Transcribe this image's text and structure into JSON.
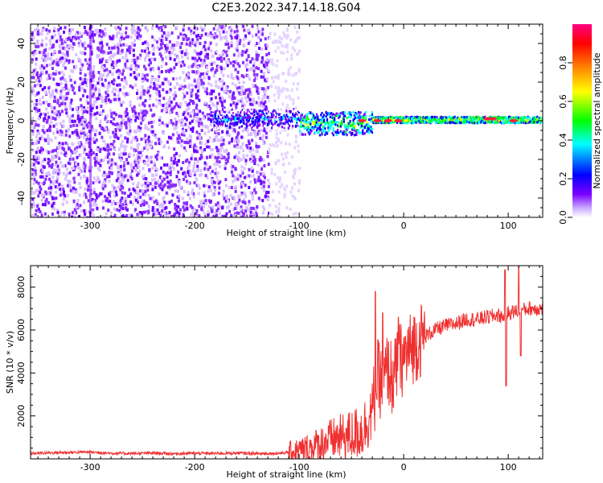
{
  "figure": {
    "title": "C2E3.2022.347.14.18.G04"
  },
  "chart_data": [
    {
      "type": "heatmap",
      "title": "C2E3.2022.347.14.18.G04",
      "xlabel": "Height of straight line (km)",
      "ylabel": "Frequency (Hz)",
      "xlim": [
        -357,
        133
      ],
      "ylim": [
        -50,
        50
      ],
      "x_ticks": [
        "-300",
        "-200",
        "-100",
        "0",
        "100"
      ],
      "x_tick_values": [
        -300,
        -200,
        -100,
        0,
        100
      ],
      "y_ticks": [
        "-40",
        "-20",
        "0",
        "20",
        "40"
      ],
      "y_tick_values": [
        -40,
        -20,
        0,
        20,
        40
      ],
      "colorbar": {
        "label": "Normalized spectral amplitude",
        "ticks": [
          "0.0",
          "0.2",
          "0.4",
          "0.6",
          "0.8"
        ],
        "tick_values": [
          0,
          0.2,
          0.4,
          0.6,
          0.8
        ],
        "range": [
          0,
          1
        ],
        "colormap": [
          "#ffffff",
          "#7b00ff",
          "#0000ff",
          "#00ffff",
          "#00ff00",
          "#ffff00",
          "#ff8000",
          "#ff0000",
          "#ff0080"
        ]
      },
      "regions": [
        {
          "description": "broadband noise",
          "x": [
            -357,
            -130
          ],
          "y": [
            -50,
            50
          ],
          "amplitude": 0.12
        },
        {
          "description": "sparse noise",
          "x": [
            -130,
            -100
          ],
          "y": [
            -50,
            50
          ],
          "amplitude": 0.05
        },
        {
          "description": "carrier onset",
          "x": [
            -180,
            -100
          ],
          "y": [
            -3,
            5
          ],
          "amplitude": 0.3
        },
        {
          "description": "carrier",
          "x": [
            -100,
            -30
          ],
          "y": [
            -6,
            4
          ],
          "amplitude": 0.5
        },
        {
          "description": "carrier",
          "x": [
            -30,
            133
          ],
          "y": [
            -1,
            2
          ],
          "amplitude": 0.6
        }
      ]
    },
    {
      "type": "line",
      "xlabel": "Height of straight line (km)",
      "ylabel": "SNR (10 * v/v)",
      "xlim": [
        -357,
        133
      ],
      "ylim": [
        0,
        9000
      ],
      "x_ticks": [
        "-300",
        "-200",
        "-100",
        "0",
        "100"
      ],
      "x_tick_values": [
        -300,
        -200,
        -100,
        0,
        100
      ],
      "y_ticks": [
        "2000",
        "4000",
        "6000",
        "8000"
      ],
      "y_tick_values": [
        2000,
        4000,
        6000,
        8000
      ],
      "color": "#f03030",
      "series": [
        {
          "x": [
            -357,
            -340,
            -320,
            -300,
            -280,
            -260,
            -240,
            -220,
            -200,
            -180,
            -160,
            -140,
            -120,
            -110,
            -100,
            -90,
            -80,
            -70,
            -60,
            -50,
            -40,
            -30,
            -25,
            -20,
            -15,
            -10,
            -5,
            0,
            10,
            20,
            30,
            40,
            50,
            60,
            70,
            80,
            90,
            95,
            100,
            110,
            120,
            133
          ],
          "y": [
            250,
            280,
            300,
            320,
            260,
            250,
            270,
            240,
            260,
            250,
            270,
            240,
            260,
            300,
            380,
            500,
            700,
            900,
            1000,
            1100,
            1300,
            2200,
            3800,
            3500,
            4200,
            3600,
            4500,
            4700,
            5300,
            5700,
            6000,
            6200,
            6300,
            6500,
            6500,
            6600,
            6700,
            6600,
            6800,
            6900,
            7000,
            7000
          ]
        }
      ],
      "spikes": [
        {
          "x": -27,
          "y": 7800
        },
        {
          "x": -20,
          "y": 6800
        },
        {
          "x": -5,
          "y": 6600
        },
        {
          "x": 97,
          "y": 8800
        },
        {
          "x": 98,
          "y": 3400
        },
        {
          "x": 110,
          "y": 9000
        },
        {
          "x": 112,
          "y": 4800
        }
      ]
    }
  ]
}
